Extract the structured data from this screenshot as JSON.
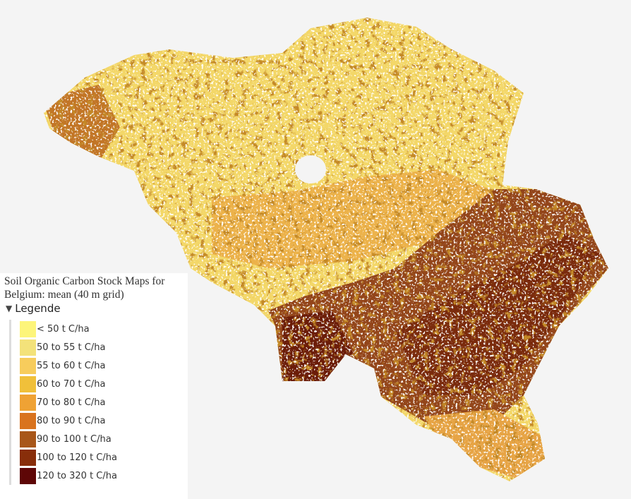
{
  "legend": {
    "title": "Soil Organic Carbon Stock Maps for Belgium: mean (40 m grid)",
    "toggle_label": "Legende",
    "toggle_icon": "triangle-down-icon",
    "items": [
      {
        "label": "< 50 t C/ha",
        "color": "#fdf57a"
      },
      {
        "label": "50 to 55 t C/ha",
        "color": "#f3e27a"
      },
      {
        "label": "55 to 60 t C/ha",
        "color": "#f7cc5c"
      },
      {
        "label": "60 to 70 t C/ha",
        "color": "#f0c03a"
      },
      {
        "label": "70 to 80 t C/ha",
        "color": "#efa234"
      },
      {
        "label": "80 to 90 t C/ha",
        "color": "#d9731e"
      },
      {
        "label": "90 to 100 t C/ha",
        "color": "#a8571a"
      },
      {
        "label": "100 to 120 t C/ha",
        "color": "#882e0a"
      },
      {
        "label": "120 to 320 t C/ha",
        "color": "#5e0606"
      }
    ]
  }
}
